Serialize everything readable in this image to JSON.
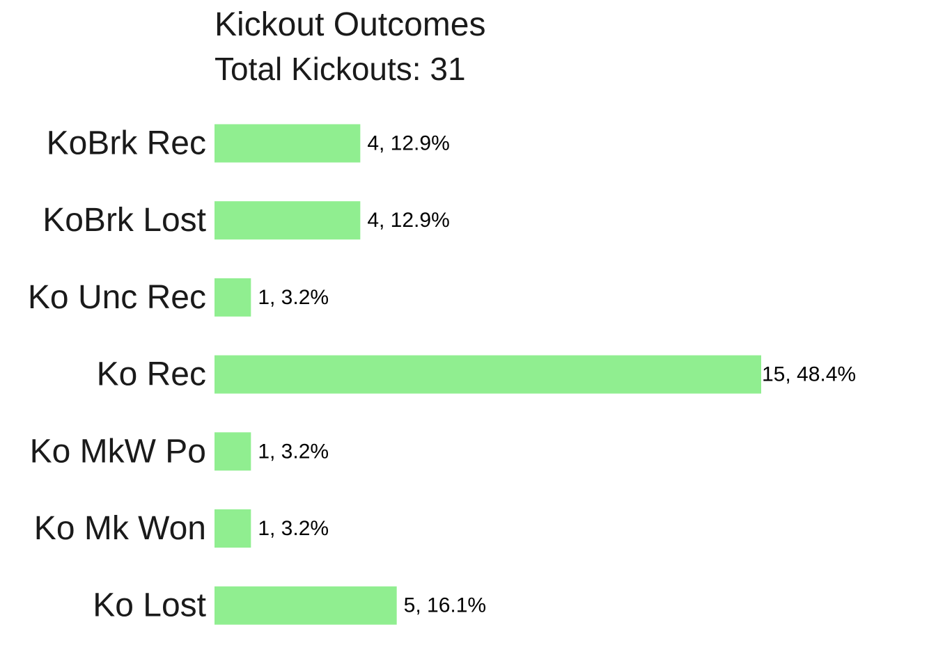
{
  "chart_data": {
    "type": "bar",
    "orientation": "horizontal",
    "title": "Kickout Outcomes",
    "subtitle": "Total Kickouts: 31",
    "categories": [
      "KoBrk Rec",
      "KoBrk Lost",
      "Ko Unc Rec",
      "Ko Rec",
      "Ko MkW Po",
      "Ko Mk Won",
      "Ko Lost"
    ],
    "values": [
      4,
      4,
      1,
      15,
      1,
      1,
      5
    ],
    "data_labels": [
      "4, 12.9%",
      "4, 12.9%",
      "1, 3.2%",
      "15, 48.4%",
      "1, 3.2%",
      "1, 3.2%",
      "5, 16.1%"
    ],
    "xlim": [
      0,
      15
    ],
    "grid": false,
    "legend": "none",
    "bar_color": "#90ee90"
  }
}
